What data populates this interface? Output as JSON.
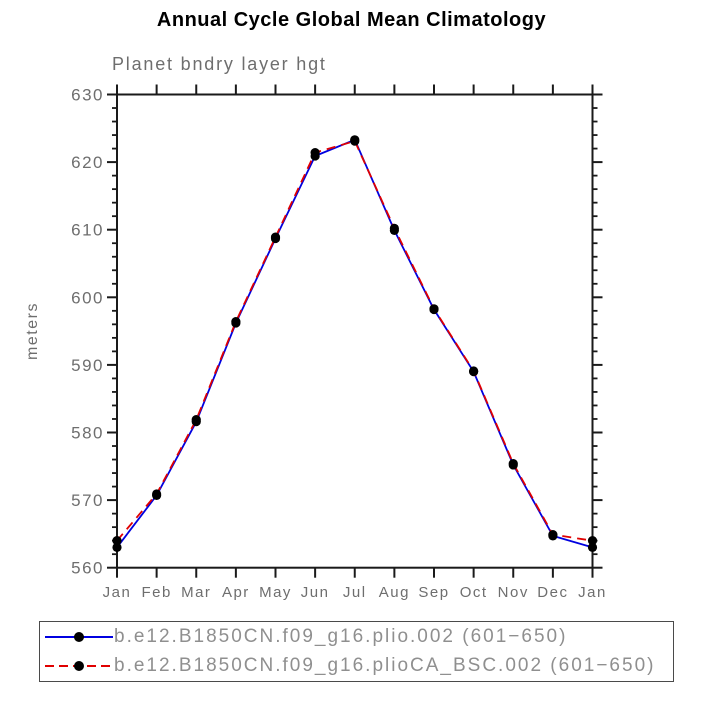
{
  "title": "Annual Cycle Global Mean Climatology",
  "chart_data": {
    "type": "line",
    "title": "Annual Cycle Global Mean Climatology",
    "subtitle": "Planet bndry layer hgt",
    "xlabel": "",
    "ylabel": "meters",
    "categories": [
      "Jan",
      "Feb",
      "Mar",
      "Apr",
      "May",
      "Jun",
      "Jul",
      "Aug",
      "Sep",
      "Oct",
      "Nov",
      "Dec",
      "Jan"
    ],
    "ylim": [
      560,
      630
    ],
    "yticks_major": [
      560,
      570,
      580,
      590,
      600,
      610,
      620,
      630
    ],
    "ytick_minor_step": 2,
    "grid": false,
    "legend_position": "bottom-box",
    "series": [
      {
        "name": "b.e12.B1850CN.f09_g16.plio.002 (601−650)",
        "color": "#0000e0",
        "style": "solid",
        "marker": "circle",
        "marker_color": "#000000",
        "values": [
          563.0,
          570.7,
          581.6,
          596.2,
          608.7,
          620.9,
          623.3,
          609.9,
          598.2,
          589.0,
          575.2,
          564.7,
          563.0
        ]
      },
      {
        "name": "b.e12.B1850CN.f09_g16.plioCA_BSC.002 (601−650)",
        "color": "#e00000",
        "style": "dashed",
        "marker": "circle",
        "marker_color": "#000000",
        "values": [
          564.0,
          570.9,
          581.9,
          596.4,
          608.9,
          621.4,
          623.1,
          610.2,
          598.3,
          589.1,
          575.4,
          564.9,
          564.0
        ]
      }
    ],
    "colors": {
      "axis": "#1a1a1a",
      "tick_label": "#6e6e6e",
      "legend_text": "#8f8f8f",
      "title": "#000000",
      "background": "#ffffff"
    }
  }
}
